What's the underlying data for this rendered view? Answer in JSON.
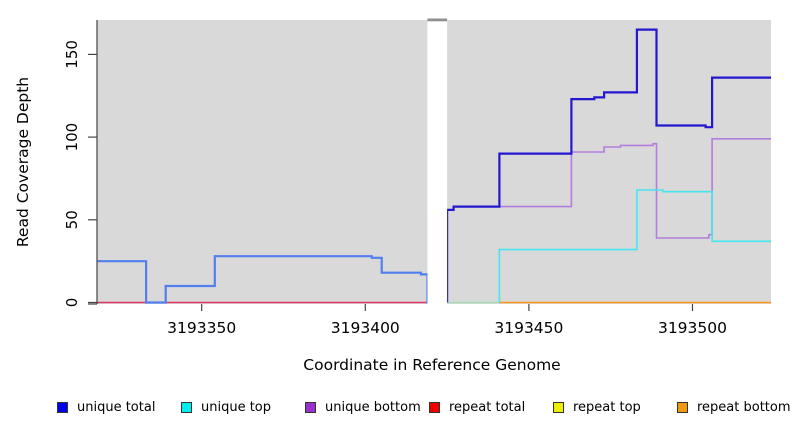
{
  "chart_data": {
    "type": "line",
    "step_interpolation": true,
    "title": "",
    "xlabel": "Coordinate in Reference Genome",
    "ylabel": "Read Coverage Depth",
    "xlim": [
      3193318,
      3193524
    ],
    "ylim": [
      0,
      170.8
    ],
    "x_ticks": [
      3193350,
      3193400,
      3193450,
      3193500
    ],
    "y_ticks": [
      0,
      50,
      100,
      150
    ],
    "panel_background": "#d9d9d9",
    "gap_region": {
      "x1": 3193419,
      "x2": 3193425,
      "fill": "#ffffff",
      "cap_color": "#8f8f8f"
    },
    "series": [
      {
        "name": "unique total (left of gap)",
        "key": "unique-total-left",
        "color": "#517fee",
        "width": 2.2,
        "points": [
          [
            3193318,
            25
          ],
          [
            3193333,
            0
          ],
          [
            3193339,
            10
          ],
          [
            3193354,
            28
          ],
          [
            3193402,
            27
          ],
          [
            3193405,
            18
          ],
          [
            3193417,
            17
          ],
          [
            3193419,
            0
          ]
        ],
        "end": 3193419.5
      },
      {
        "name": "unique bottom",
        "key": "unique-bottom",
        "color": "#b27ddd",
        "width": 1.6,
        "points": [
          [
            3193425,
            0
          ],
          [
            3193425,
            56
          ],
          [
            3193427,
            58
          ],
          [
            3193463,
            91
          ],
          [
            3193473,
            94
          ],
          [
            3193478,
            95
          ],
          [
            3193488,
            96
          ],
          [
            3193489,
            39
          ],
          [
            3193505,
            41
          ],
          [
            3193506,
            99
          ]
        ],
        "end": 3193524
      },
      {
        "name": "unique top",
        "key": "unique-top",
        "color": "#45e6ef",
        "width": 1.6,
        "points": [
          [
            3193441,
            0
          ],
          [
            3193441,
            32
          ],
          [
            3193483,
            68
          ],
          [
            3193491,
            67
          ],
          [
            3193506,
            37
          ]
        ],
        "end": 3193524
      },
      {
        "name": "unique total",
        "key": "unique-total",
        "color": "#2318cf",
        "width": 2.2,
        "points": [
          [
            3193425,
            0
          ],
          [
            3193425,
            56
          ],
          [
            3193427,
            58
          ],
          [
            3193441,
            90
          ],
          [
            3193463,
            123
          ],
          [
            3193470,
            124
          ],
          [
            3193473,
            127
          ],
          [
            3193483,
            165
          ],
          [
            3193489,
            107
          ],
          [
            3193504,
            106
          ],
          [
            3193506,
            136
          ]
        ],
        "end": 3193524
      }
    ],
    "zero_segments": [
      {
        "series": "repeat total",
        "color": "#dc3a64",
        "x1": 3193318,
        "x2": 3193419
      },
      {
        "series": "unique top / repeat top overlap",
        "color": "#a9dcb5",
        "x1": 3193425,
        "x2": 3193441
      },
      {
        "series": "repeat bottom",
        "color": "#ff9421",
        "x1": 3193441,
        "x2": 3193524
      }
    ],
    "legend": [
      {
        "label": "unique total",
        "color": "#0000ee"
      },
      {
        "label": "unique top",
        "color": "#00eeee"
      },
      {
        "label": "unique bottom",
        "color": "#9932cc"
      },
      {
        "label": "repeat total",
        "color": "#ee0000"
      },
      {
        "label": "repeat top",
        "color": "#eeee00"
      },
      {
        "label": "repeat bottom",
        "color": "#ee9911"
      }
    ],
    "legend_position": "bottom"
  }
}
